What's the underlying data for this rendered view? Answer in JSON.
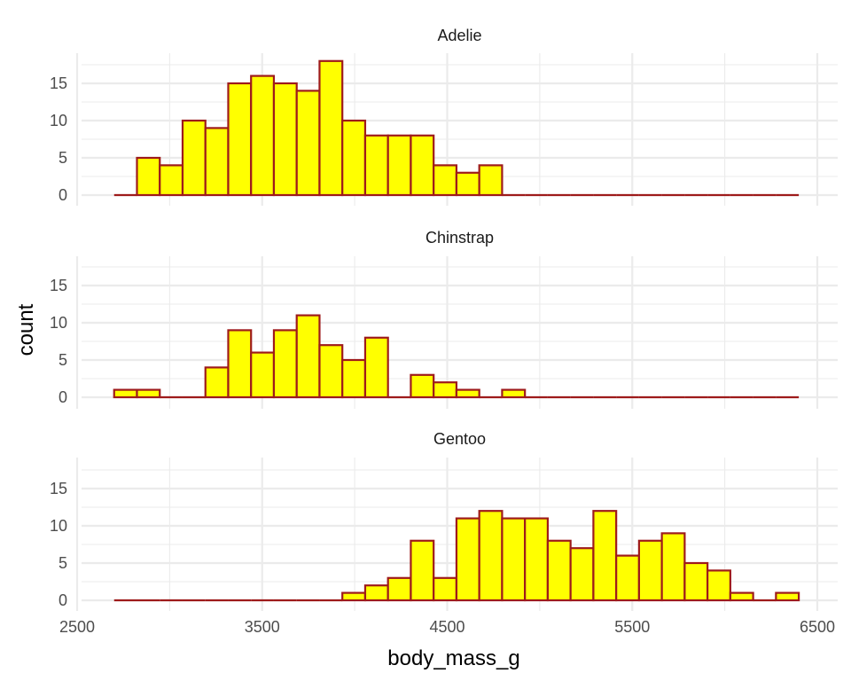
{
  "chart_data": {
    "type": "bar",
    "subtype": "histogram-faceted",
    "xlabel": "body_mass_g",
    "ylabel": "count",
    "xlim": [
      2500,
      6500
    ],
    "ylim": [
      0,
      18.5
    ],
    "x_ticks": [
      2500,
      3500,
      4500,
      5500,
      6500
    ],
    "x_minor_ticks": [
      3000,
      4000,
      5000,
      6000
    ],
    "y_ticks": [
      0,
      5,
      10,
      15
    ],
    "y_minor_ticks": [
      2.5,
      7.5,
      12.5,
      17.5
    ],
    "bins": {
      "start": 2700,
      "width": 123.33,
      "count": 30
    },
    "grid": true,
    "fill_color": "#ffff00",
    "outline_color": "#9e1b1b",
    "panels": [
      {
        "label": "Adelie",
        "counts": [
          0,
          5,
          4,
          10,
          9,
          15,
          16,
          15,
          14,
          18,
          10,
          8,
          8,
          8,
          4,
          3,
          4,
          0,
          0,
          0,
          0,
          0,
          0,
          0,
          0,
          0,
          0,
          0,
          0,
          0
        ]
      },
      {
        "label": "Chinstrap",
        "counts": [
          1,
          1,
          0,
          0,
          4,
          9,
          6,
          9,
          11,
          7,
          5,
          8,
          0,
          3,
          2,
          1,
          0,
          1,
          0,
          0,
          0,
          0,
          0,
          0,
          0,
          0,
          0,
          0,
          0,
          0
        ]
      },
      {
        "label": "Gentoo",
        "counts": [
          0,
          0,
          0,
          0,
          0,
          0,
          0,
          0,
          0,
          0,
          1,
          2,
          3,
          8,
          3,
          11,
          12,
          11,
          11,
          8,
          7,
          12,
          6,
          8,
          9,
          5,
          4,
          1,
          0,
          1
        ]
      }
    ]
  }
}
